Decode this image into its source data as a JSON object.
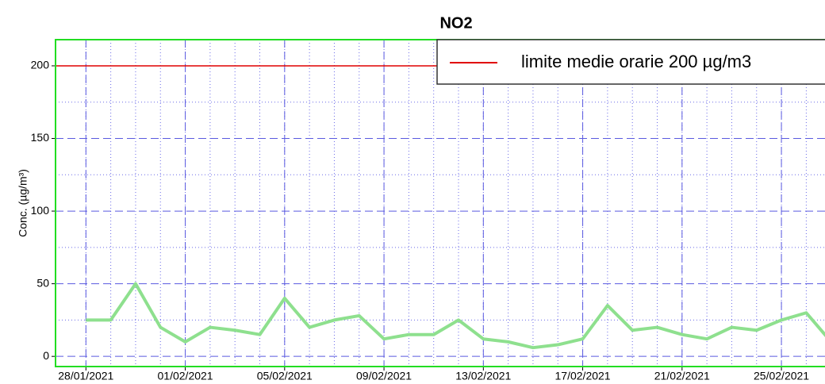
{
  "chart_data": {
    "type": "line",
    "title": "NO2",
    "y_label": "Conc. (µg/m³)",
    "x": [
      "28/01/2021",
      "29/01/2021",
      "30/01/2021",
      "31/01/2021",
      "01/02/2021",
      "02/02/2021",
      "03/02/2021",
      "04/02/2021",
      "05/02/2021",
      "06/02/2021",
      "07/02/2021",
      "08/02/2021",
      "09/02/2021",
      "10/02/2021",
      "11/02/2021",
      "12/02/2021",
      "13/02/2021",
      "14/02/2021",
      "15/02/2021",
      "16/02/2021",
      "17/02/2021",
      "18/02/2021",
      "19/02/2021",
      "20/02/2021",
      "21/02/2021",
      "22/02/2021",
      "23/02/2021",
      "24/02/2021",
      "25/02/2021",
      "26/02/2021",
      "27/02/2021"
    ],
    "series": [
      {
        "name": "NO2",
        "color": "#8ee08e",
        "values": [
          25,
          25,
          50,
          20,
          10,
          20,
          18,
          15,
          40,
          20,
          25,
          28,
          12,
          15,
          15,
          25,
          12,
          10,
          6,
          8,
          12,
          35,
          18,
          20,
          15,
          12,
          20,
          18,
          25,
          30,
          10
        ]
      }
    ],
    "threshold": {
      "name": "limite medie orarie 200 µg/m3",
      "value": 200,
      "color": "#e00000"
    },
    "xlim": [
      "27/01/2021",
      "28/02/2021"
    ],
    "xticks": [
      "28/01/2021",
      "01/02/2021",
      "05/02/2021",
      "09/02/2021",
      "13/02/2021",
      "17/02/2021",
      "21/02/2021",
      "25/02/2021"
    ],
    "ylim": [
      -7,
      218
    ],
    "yticks": [
      0,
      50,
      100,
      150,
      200
    ],
    "yminor": [
      25,
      75,
      125,
      175
    ],
    "grid": true,
    "legend": "upper right"
  }
}
